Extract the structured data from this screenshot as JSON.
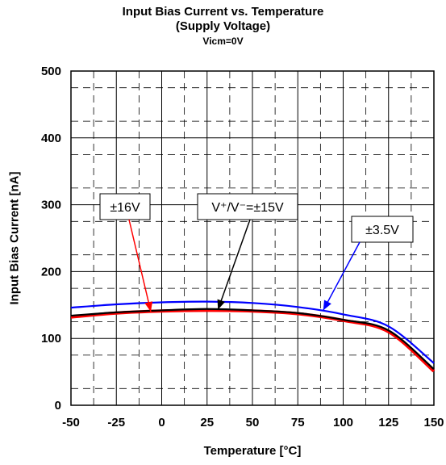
{
  "chart_data": {
    "type": "line",
    "title": "Input Bias Current vs. Temperature",
    "subtitle": "(Supply Voltage)",
    "subtitle2": "Vicm=0V",
    "xlabel": "Temperature [°C]",
    "ylabel": "Input Bias Current [nA]",
    "xlim": [
      -50,
      150
    ],
    "ylim": [
      0,
      500
    ],
    "xticks": [
      -50,
      -25,
      0,
      25,
      50,
      75,
      100,
      125,
      150
    ],
    "yticks": [
      0,
      100,
      200,
      300,
      400,
      500
    ],
    "grid": {
      "major": "solid",
      "minor": "dashed"
    },
    "series": [
      {
        "name": "±3.5V",
        "color": "#0000ff",
        "x": [
          -50,
          -25,
          0,
          25,
          50,
          75,
          100,
          125,
          150
        ],
        "y": [
          146,
          151,
          154,
          155,
          153,
          147,
          136,
          118,
          63
        ]
      },
      {
        "name": "±16V",
        "color": "#ff0000",
        "x": [
          -50,
          -25,
          0,
          25,
          50,
          75,
          100,
          125,
          150
        ],
        "y": [
          132,
          138,
          141,
          142,
          141,
          137,
          127,
          110,
          51
        ]
      },
      {
        "name": "V⁺/V⁻=±15V",
        "color": "#000000",
        "x": [
          -50,
          -25,
          0,
          25,
          50,
          75,
          100,
          125,
          150
        ],
        "y": [
          134,
          139,
          142,
          144,
          142,
          138,
          128,
          112,
          54
        ]
      }
    ],
    "annotations": [
      {
        "label": "±16V",
        "series": "±16V",
        "color": "#ff0000",
        "point": [
          -6,
          140
        ]
      },
      {
        "label": "V⁺/V⁻=±15V",
        "series": "V⁺/V⁻=±15V",
        "color": "#000000",
        "point": [
          31,
          143
        ]
      },
      {
        "label": "±3.5V",
        "series": "±3.5V",
        "color": "#0000ff",
        "point": [
          89,
          142
        ]
      }
    ]
  }
}
